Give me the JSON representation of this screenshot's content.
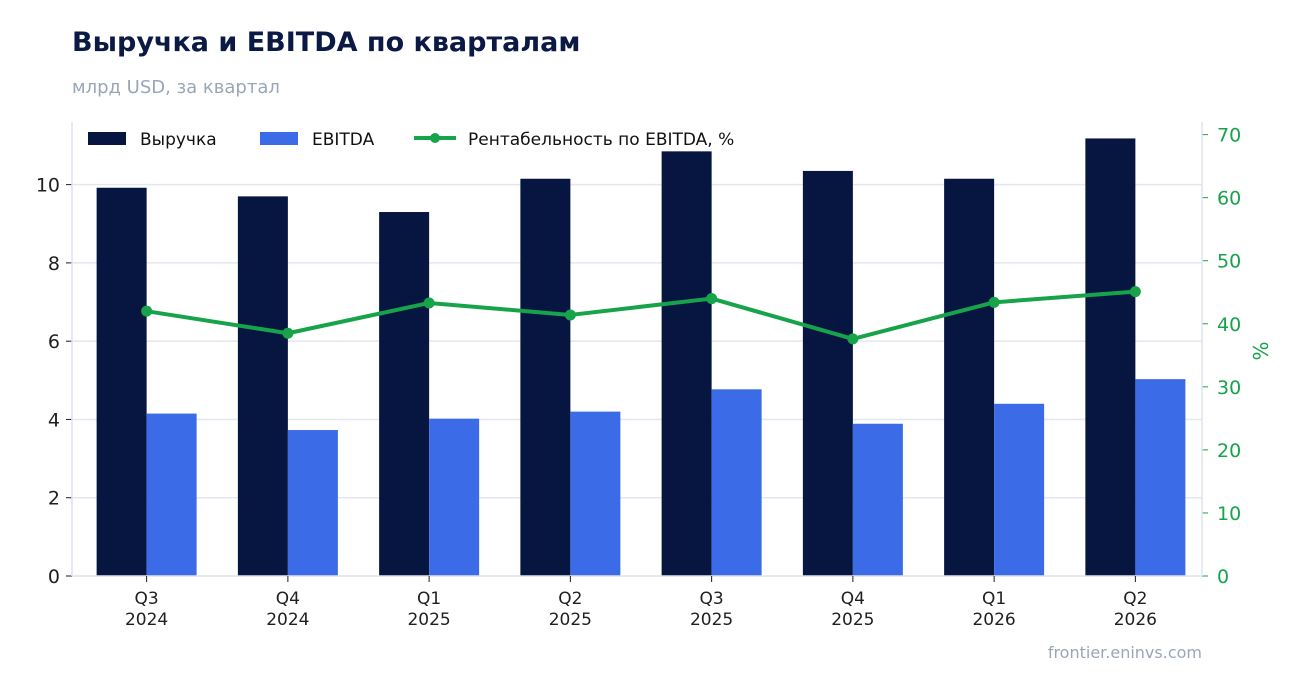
{
  "title": "Выручка и EBITDA по кварталам",
  "subtitle": "млрд USD, за квартал",
  "source": "frontier.eninvs.com",
  "colors": {
    "revenue": "#061641",
    "ebitda": "#3b6be6",
    "margin": "#16a34a",
    "grid": "#e3e7f0",
    "axis": "#1c1c1c"
  },
  "legend": {
    "placement": "top-left"
  },
  "chart_data": {
    "type": "bar",
    "categories": [
      "Q3\n2024",
      "Q4\n2024",
      "Q1\n2025",
      "Q2\n2025",
      "Q3\n2025",
      "Q4\n2025",
      "Q1\n2026",
      "Q2\n2026"
    ],
    "series": [
      {
        "name": "Выручка",
        "type": "bar",
        "axis": "left",
        "values": [
          9.92,
          9.7,
          9.3,
          10.15,
          10.85,
          10.35,
          10.15,
          11.18
        ]
      },
      {
        "name": "EBITDA",
        "type": "bar",
        "axis": "left",
        "values": [
          4.15,
          3.73,
          4.02,
          4.2,
          4.77,
          3.89,
          4.4,
          5.03
        ]
      },
      {
        "name": "Рентабельность по EBITDA, %",
        "type": "line",
        "axis": "right",
        "values": [
          42.0,
          38.5,
          43.3,
          41.4,
          44.0,
          37.6,
          43.4,
          45.1
        ]
      }
    ],
    "xlabel": "",
    "ylabel": "",
    "y2label": "%",
    "ylim": [
      0,
      11.6
    ],
    "yticks": [
      0,
      2,
      4,
      6,
      8,
      10
    ],
    "y2lim": [
      0,
      72
    ],
    "y2ticks": [
      0,
      10,
      20,
      30,
      40,
      50,
      60,
      70
    ],
    "grid": true
  }
}
